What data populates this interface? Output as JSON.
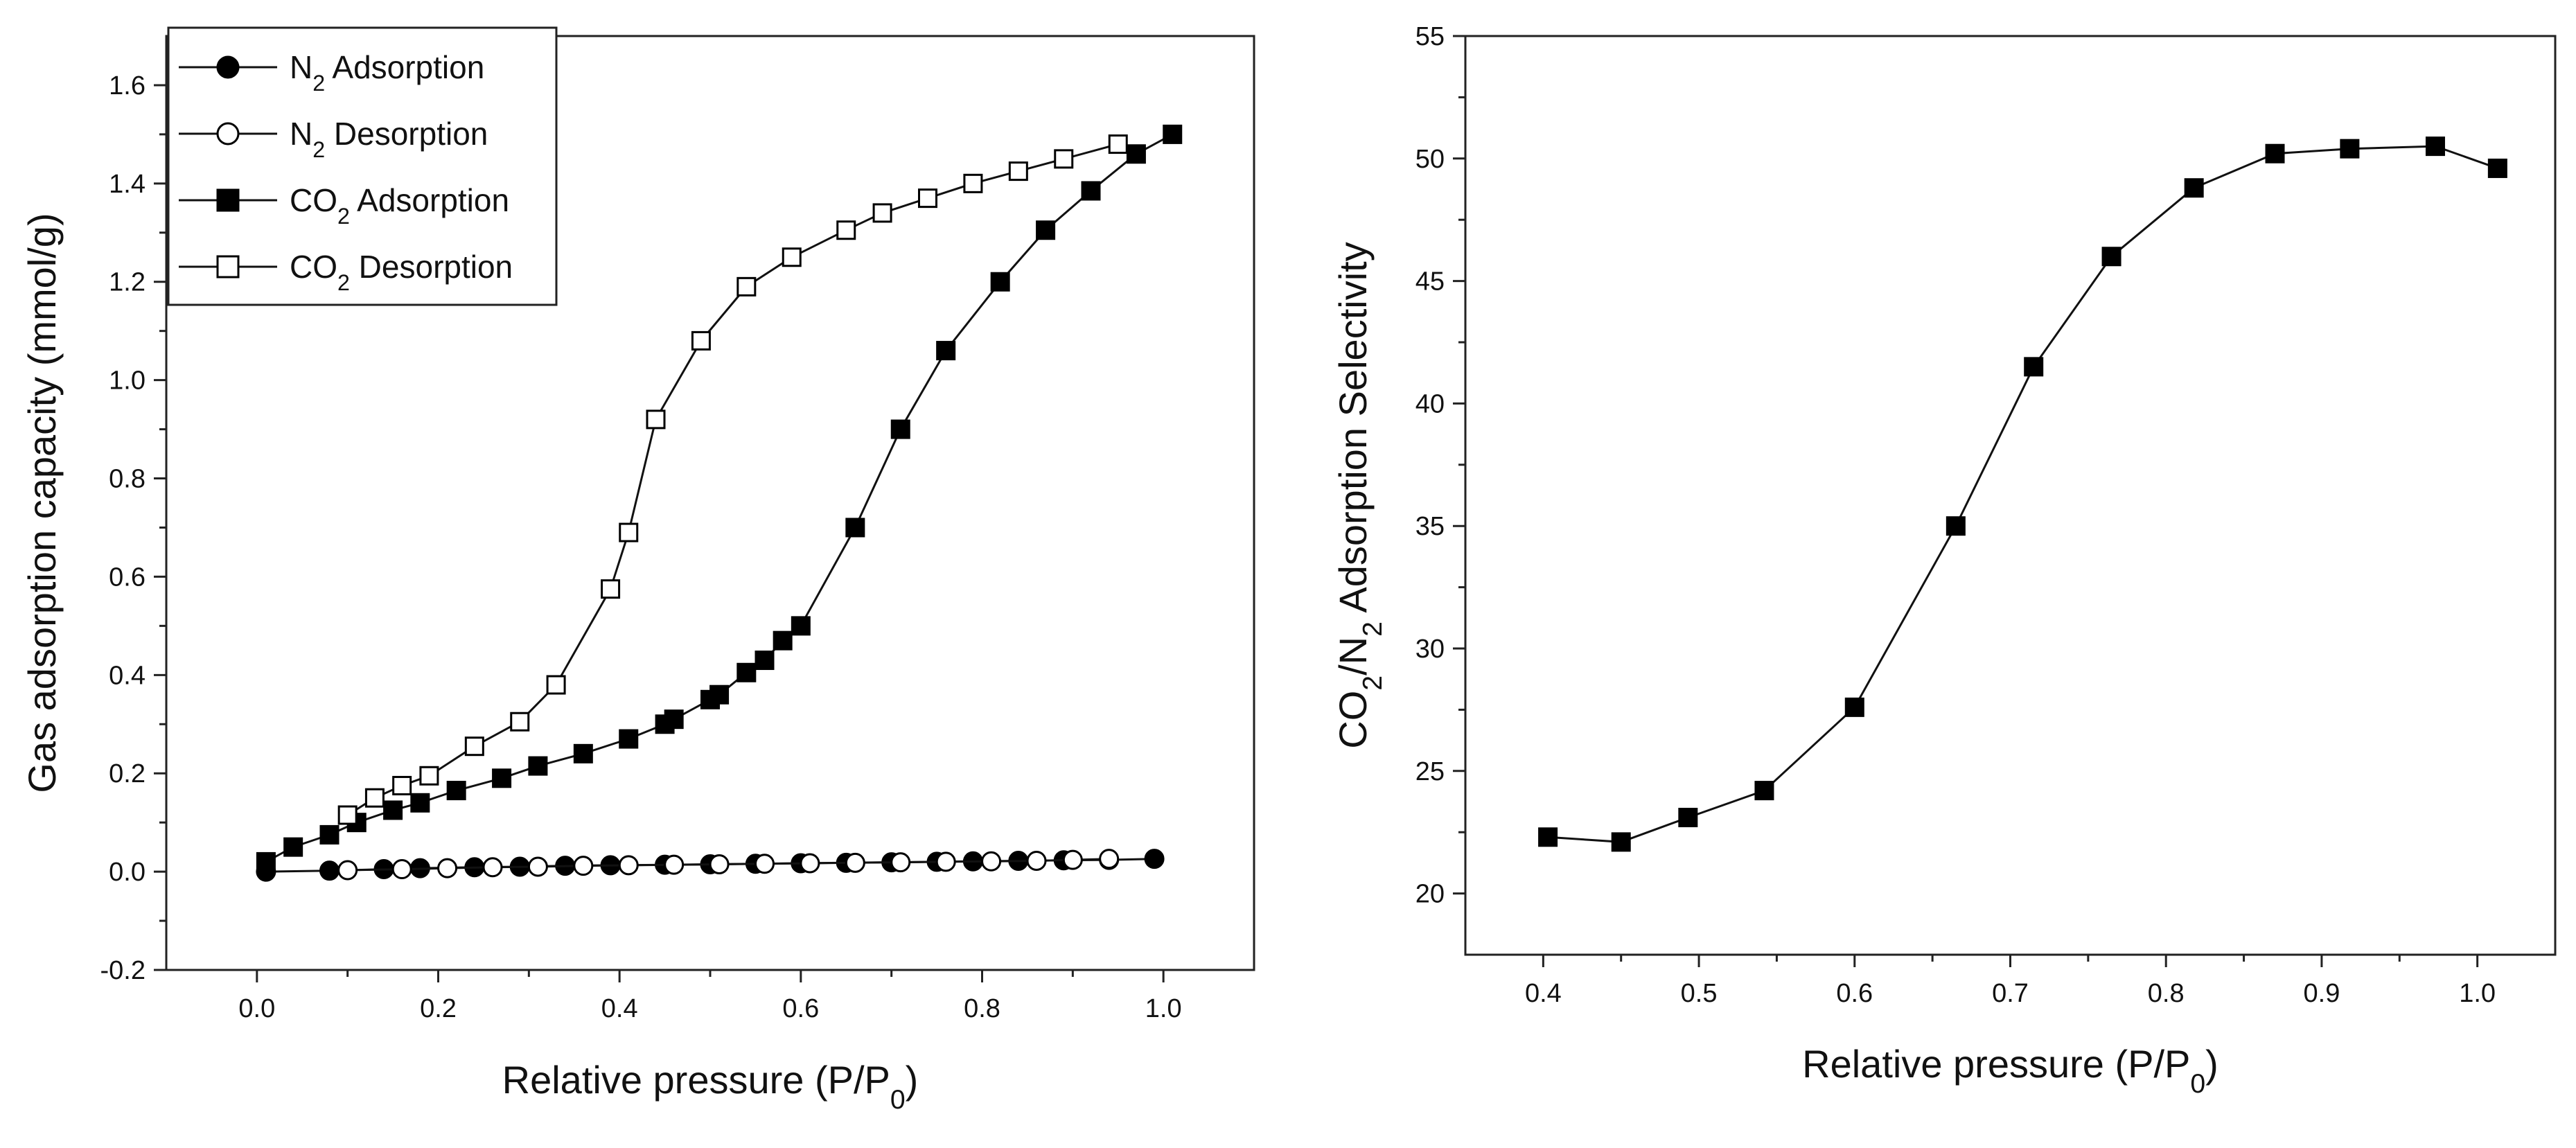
{
  "chart_data": [
    {
      "type": "line",
      "title": "",
      "xlabel": "Relative pressure (P/P",
      "xlabel_sub": "0",
      "xlabel_tail": ")",
      "ylabel": "Gas adsorption capacity (mmol/g)",
      "xlim": [
        -0.1,
        1.1
      ],
      "ylim": [
        -0.2,
        1.7
      ],
      "xticks": [
        0.0,
        0.2,
        0.4,
        0.6,
        0.8,
        1.0
      ],
      "xtick_labels": [
        "0.0",
        "0.2",
        "0.4",
        "0.6",
        "0.8",
        "1.0"
      ],
      "yticks": [
        -0.2,
        0.0,
        0.2,
        0.4,
        0.6,
        0.8,
        1.0,
        1.2,
        1.4,
        1.6
      ],
      "ytick_labels": [
        "-0.2",
        "0.0",
        "0.2",
        "0.4",
        "0.6",
        "0.8",
        "1.0",
        "1.2",
        "1.4",
        "1.6"
      ],
      "legend_position": "top-left",
      "series": [
        {
          "name": "N2 Adsorption",
          "legend_main": "N",
          "legend_sub": "2",
          "legend_tail": " Adsorption",
          "marker": "circle",
          "filled": true,
          "x": [
            0.01,
            0.08,
            0.14,
            0.18,
            0.24,
            0.29,
            0.34,
            0.39,
            0.45,
            0.5,
            0.55,
            0.6,
            0.65,
            0.7,
            0.75,
            0.79,
            0.84,
            0.89,
            0.94,
            0.99
          ],
          "y": [
            0.0,
            0.002,
            0.005,
            0.007,
            0.009,
            0.01,
            0.012,
            0.013,
            0.014,
            0.015,
            0.016,
            0.017,
            0.018,
            0.019,
            0.02,
            0.021,
            0.022,
            0.023,
            0.024,
            0.026
          ]
        },
        {
          "name": "N2 Desorption",
          "legend_main": "N",
          "legend_sub": "2",
          "legend_tail": " Desorption",
          "marker": "circle",
          "filled": false,
          "x": [
            0.1,
            0.16,
            0.21,
            0.26,
            0.31,
            0.36,
            0.41,
            0.46,
            0.51,
            0.56,
            0.61,
            0.66,
            0.71,
            0.76,
            0.81,
            0.86,
            0.9,
            0.94
          ],
          "y": [
            0.003,
            0.005,
            0.007,
            0.009,
            0.01,
            0.012,
            0.013,
            0.014,
            0.015,
            0.016,
            0.017,
            0.018,
            0.019,
            0.02,
            0.021,
            0.022,
            0.024,
            0.026
          ]
        },
        {
          "name": "CO2 Adsorption",
          "legend_main": "CO",
          "legend_sub": "2",
          "legend_tail": " Adsorption",
          "marker": "square",
          "filled": true,
          "x": [
            0.01,
            0.04,
            0.08,
            0.11,
            0.15,
            0.18,
            0.22,
            0.27,
            0.31,
            0.36,
            0.41,
            0.45,
            0.46,
            0.5,
            0.51,
            0.54,
            0.56,
            0.58,
            0.6,
            0.66,
            0.71,
            0.76,
            0.82,
            0.87,
            0.92,
            0.97,
            1.01
          ],
          "y": [
            0.02,
            0.05,
            0.075,
            0.1,
            0.125,
            0.14,
            0.165,
            0.19,
            0.215,
            0.24,
            0.27,
            0.3,
            0.31,
            0.35,
            0.36,
            0.405,
            0.43,
            0.47,
            0.5,
            0.7,
            0.9,
            1.06,
            1.2,
            1.305,
            1.385,
            1.46,
            1.5
          ]
        },
        {
          "name": "CO2 Desorption",
          "legend_main": "CO",
          "legend_sub": "2",
          "legend_tail": " Desorption",
          "marker": "square",
          "filled": false,
          "x": [
            0.1,
            0.13,
            0.16,
            0.19,
            0.24,
            0.29,
            0.33,
            0.39,
            0.41,
            0.44,
            0.49,
            0.54,
            0.59,
            0.65,
            0.69,
            0.74,
            0.79,
            0.84,
            0.89,
            0.95
          ],
          "y": [
            0.115,
            0.15,
            0.175,
            0.195,
            0.255,
            0.305,
            0.38,
            0.575,
            0.69,
            0.92,
            1.08,
            1.19,
            1.25,
            1.305,
            1.34,
            1.37,
            1.4,
            1.425,
            1.45,
            1.48
          ]
        }
      ]
    },
    {
      "type": "line",
      "title": "",
      "xlabel": "Relative pressure (P/P",
      "xlabel_sub": "0",
      "xlabel_tail": ")",
      "ylabel_parts": [
        "CO",
        "2",
        "/N",
        "2",
        " Adsorption Selectivity"
      ],
      "ylabel": "CO2/N2 Adsorption Selectivity",
      "xlim": [
        0.35,
        1.05
      ],
      "ylim": [
        17.5,
        55
      ],
      "xticks": [
        0.4,
        0.5,
        0.6,
        0.7,
        0.8,
        0.9,
        1.0
      ],
      "xtick_labels": [
        "0.4",
        "0.5",
        "0.6",
        "0.7",
        "0.8",
        "0.9",
        "1.0"
      ],
      "yticks": [
        20,
        25,
        30,
        35,
        40,
        45,
        50,
        55
      ],
      "ytick_labels": [
        "20",
        "25",
        "30",
        "35",
        "40",
        "45",
        "50",
        "55"
      ],
      "series": [
        {
          "name": "CO2/N2 Adsorption Selectivity",
          "marker": "square",
          "filled": true,
          "x": [
            0.403,
            0.45,
            0.493,
            0.542,
            0.6,
            0.665,
            0.715,
            0.765,
            0.818,
            0.87,
            0.918,
            0.973,
            1.013
          ],
          "y": [
            22.3,
            22.1,
            23.1,
            24.2,
            27.6,
            35.0,
            41.5,
            46.0,
            48.8,
            50.2,
            50.4,
            50.5,
            49.6
          ]
        }
      ]
    }
  ]
}
